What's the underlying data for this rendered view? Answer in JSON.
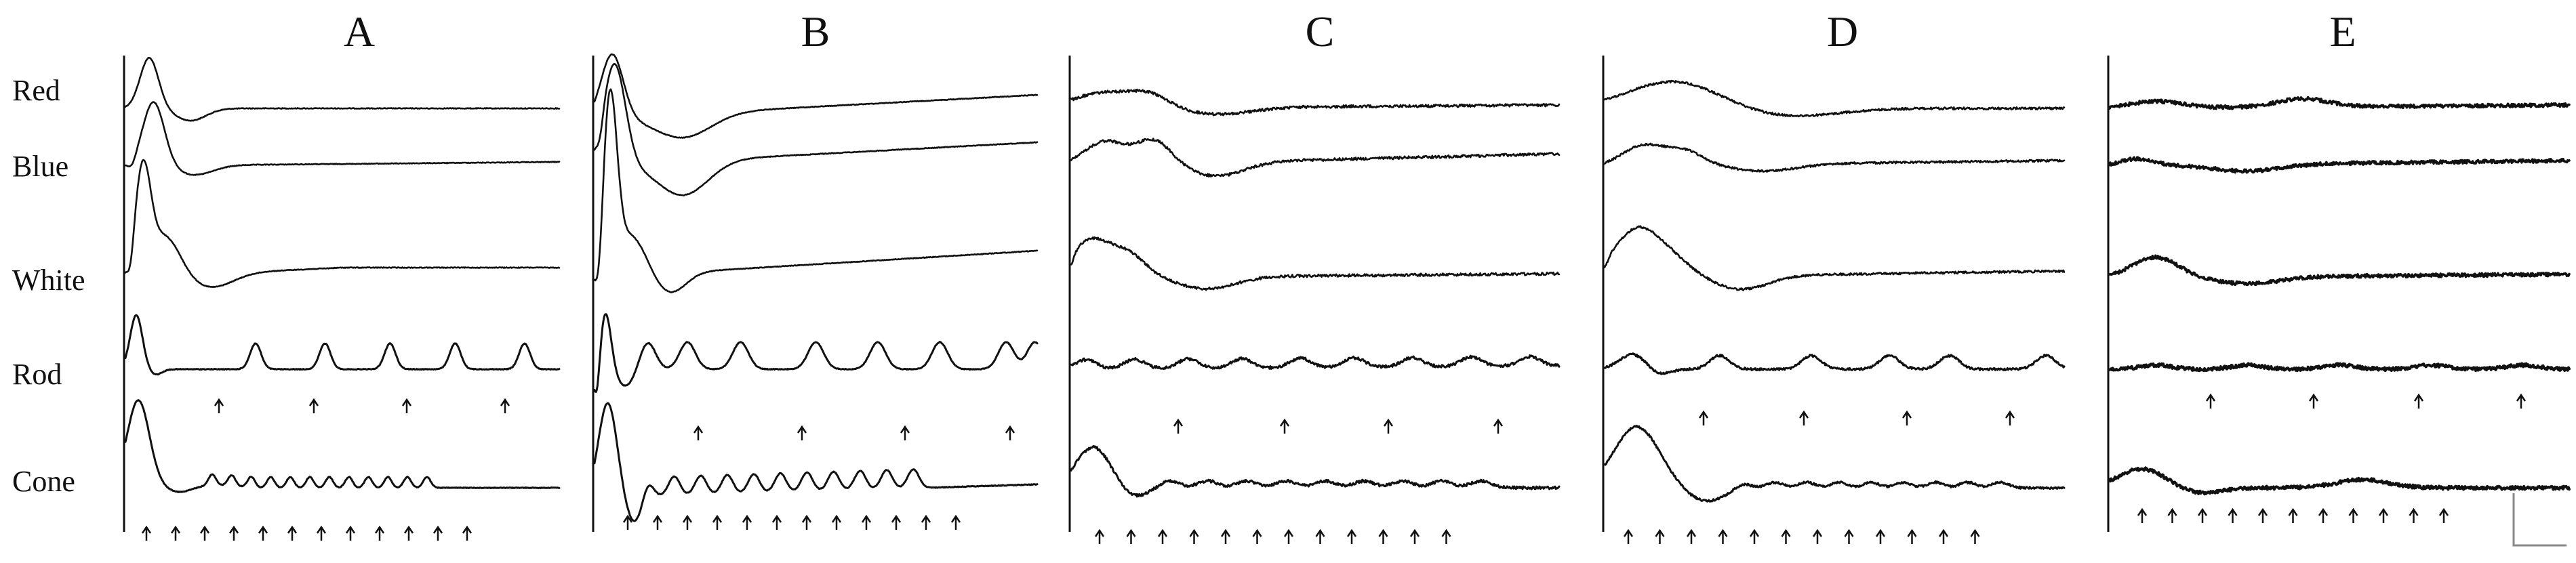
{
  "panels": [
    "A",
    "B",
    "C",
    "D",
    "E"
  ],
  "rows": [
    "Red",
    "Blue",
    "White",
    "Rod",
    "Cone"
  ]
}
